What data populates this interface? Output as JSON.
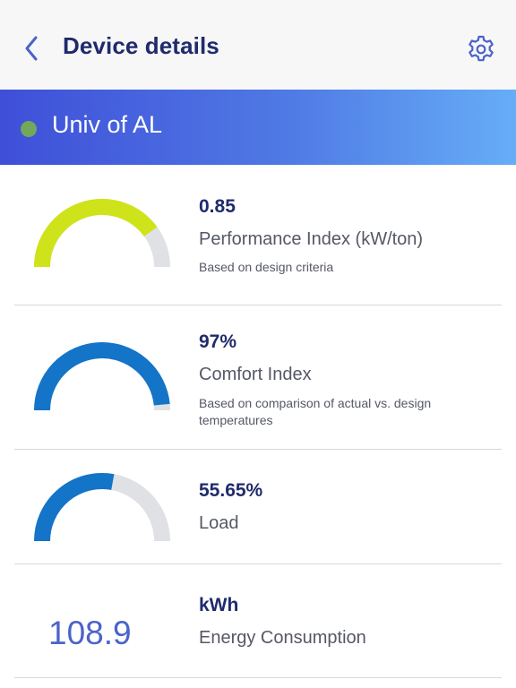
{
  "header": {
    "title": "Device details",
    "back_icon": "chevron-left-icon",
    "settings_icon": "gear-icon"
  },
  "site": {
    "name": "Univ of AL",
    "status_color": "#73a85a"
  },
  "metrics": [
    {
      "value": "0.85",
      "label": "Performance Index (kW/ton)",
      "sub": "Based on design criteria",
      "gauge_fraction": 0.8,
      "gauge_color": "#cfe31a"
    },
    {
      "value": "97%",
      "label": "Comfort Index",
      "sub": "Based on comparison of actual vs. design temperatures",
      "gauge_fraction": 0.97,
      "gauge_color": "#1374c8"
    },
    {
      "value": "55.65%",
      "label": "Load",
      "sub": "",
      "gauge_fraction": 0.5565,
      "gauge_color": "#1374c8"
    },
    {
      "value": "kWh",
      "label": "Energy Consumption",
      "big_number": "108.9"
    }
  ],
  "colors": {
    "header_bg": "#f7f7f8",
    "title": "#1f2b6b",
    "banner_start": "#3f4fd8",
    "banner_end": "#66adf7",
    "gauge_track": "#e0e1e4"
  }
}
